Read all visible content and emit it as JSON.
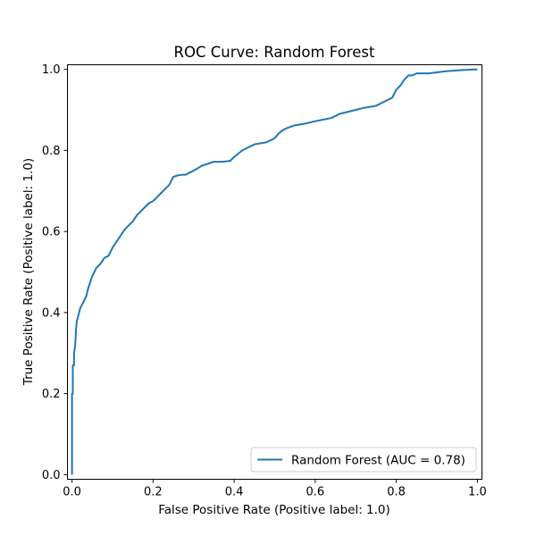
{
  "chart_data": {
    "type": "line",
    "title": "ROC Curve: Random Forest",
    "xlabel": "False Positive Rate (Positive label: 1.0)",
    "ylabel": "True Positive Rate (Positive label: 1.0)",
    "xlim": [
      0,
      1
    ],
    "ylim": [
      0,
      1
    ],
    "xticks": [
      "0.0",
      "0.2",
      "0.4",
      "0.6",
      "0.8",
      "1.0"
    ],
    "yticks": [
      "0.0",
      "0.2",
      "0.4",
      "0.6",
      "0.8",
      "1.0"
    ],
    "grid": false,
    "legend_position": "lower-right",
    "series": [
      {
        "name": "Random Forest (AUC = 0.78)",
        "color": "#1f77b4",
        "x": [
          0.0,
          0.0,
          0.002,
          0.002,
          0.005,
          0.005,
          0.008,
          0.01,
          0.012,
          0.015,
          0.02,
          0.025,
          0.03,
          0.035,
          0.04,
          0.05,
          0.06,
          0.07,
          0.08,
          0.09,
          0.1,
          0.11,
          0.12,
          0.13,
          0.14,
          0.15,
          0.16,
          0.17,
          0.18,
          0.19,
          0.2,
          0.21,
          0.22,
          0.23,
          0.24,
          0.25,
          0.26,
          0.27,
          0.28,
          0.29,
          0.3,
          0.32,
          0.35,
          0.37,
          0.39,
          0.4,
          0.42,
          0.45,
          0.48,
          0.5,
          0.51,
          0.52,
          0.53,
          0.55,
          0.57,
          0.6,
          0.62,
          0.64,
          0.66,
          0.68,
          0.7,
          0.72,
          0.75,
          0.77,
          0.79,
          0.8,
          0.81,
          0.82,
          0.83,
          0.84,
          0.85,
          0.88,
          0.92,
          0.96,
          1.0
        ],
        "y": [
          0.0,
          0.2,
          0.2,
          0.27,
          0.27,
          0.3,
          0.32,
          0.36,
          0.38,
          0.39,
          0.41,
          0.42,
          0.43,
          0.44,
          0.46,
          0.49,
          0.51,
          0.52,
          0.535,
          0.54,
          0.56,
          0.575,
          0.59,
          0.605,
          0.615,
          0.625,
          0.64,
          0.65,
          0.66,
          0.67,
          0.675,
          0.685,
          0.695,
          0.705,
          0.715,
          0.735,
          0.738,
          0.74,
          0.74,
          0.745,
          0.75,
          0.762,
          0.772,
          0.772,
          0.774,
          0.784,
          0.8,
          0.815,
          0.82,
          0.83,
          0.842,
          0.85,
          0.855,
          0.862,
          0.865,
          0.872,
          0.876,
          0.88,
          0.89,
          0.895,
          0.9,
          0.905,
          0.91,
          0.92,
          0.93,
          0.95,
          0.96,
          0.975,
          0.985,
          0.985,
          0.99,
          0.99,
          0.995,
          0.998,
          1.0
        ]
      }
    ]
  }
}
